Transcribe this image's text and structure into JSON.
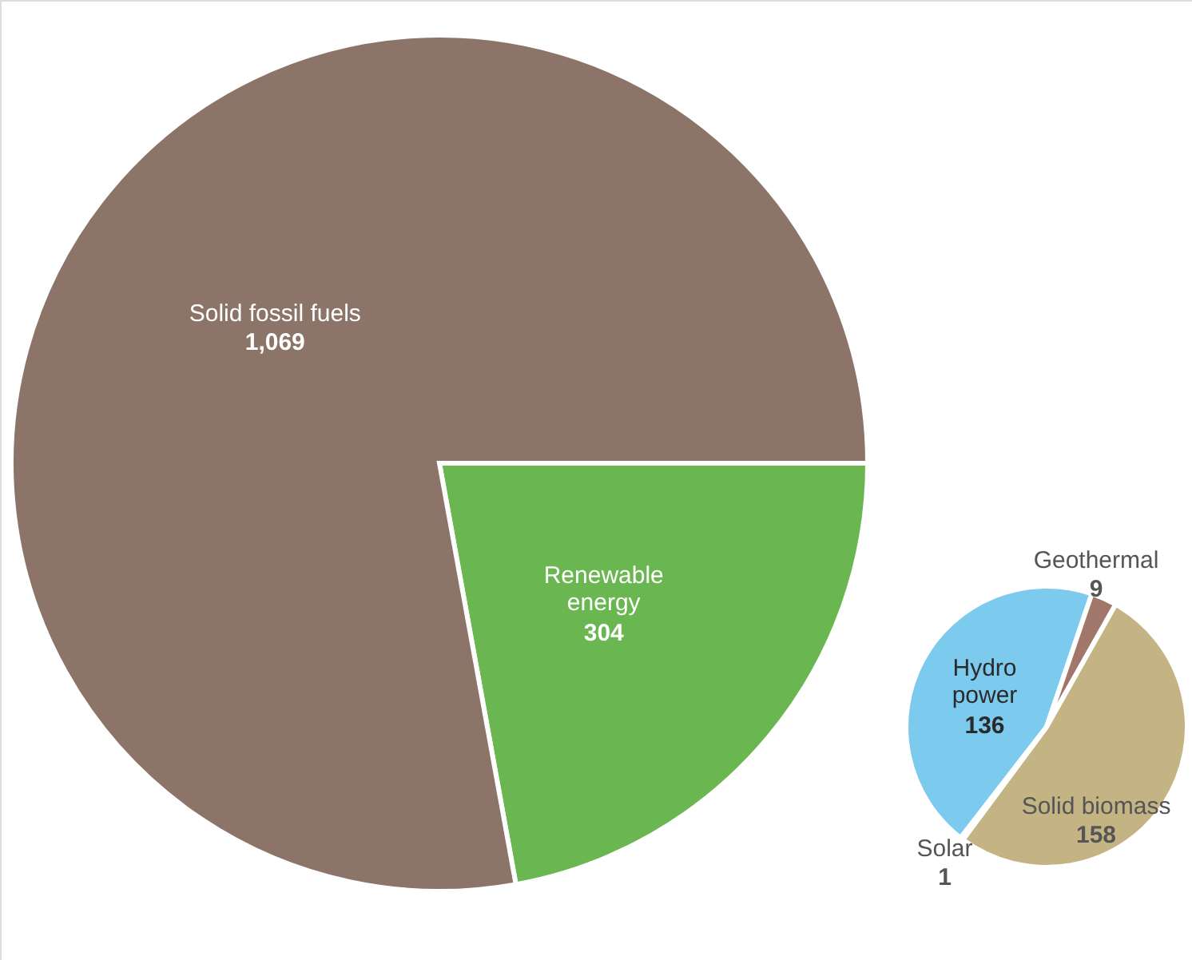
{
  "chart_data": [
    {
      "type": "pie",
      "categories": [
        "Renewable energy",
        "Solid fossil fuels"
      ],
      "values": [
        304,
        1069
      ],
      "colors": [
        "#6ab651",
        "#8c7468"
      ],
      "value_labels": [
        "304",
        "1,069"
      ]
    },
    {
      "type": "pie",
      "categories": [
        "Hydro power",
        "Geothermal",
        "Solid biomass",
        "Solar"
      ],
      "values": [
        136,
        9,
        158,
        1
      ],
      "colors": [
        "#7ccbef",
        "#a0776a",
        "#c4b383",
        "#f0a030"
      ],
      "value_labels": [
        "136",
        "9",
        "158",
        "1"
      ]
    }
  ]
}
